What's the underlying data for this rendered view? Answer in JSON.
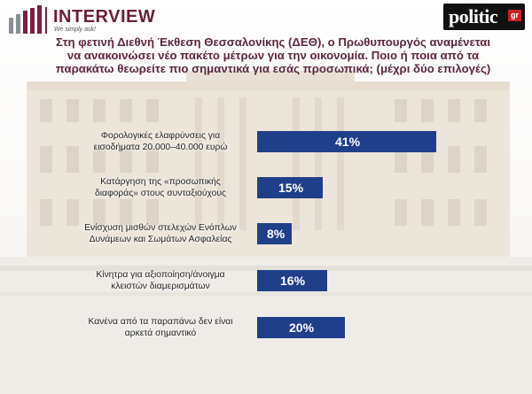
{
  "header": {
    "brand": "INTERVIEW",
    "tagline": "We simply ask!",
    "partner_logo_word": "politic",
    "partner_logo_suffix": "gr"
  },
  "question": {
    "lines": [
      "Στη φετινή Διεθνή Έκθεση Θεσσαλονίκης (ΔΕΘ), ο Πρωθυπουργός αναμένεται",
      "να ανακοινώσει νέο πακέτο μέτρων για την οικονομία. Ποιο ή ποια από τα",
      "παρακάτω θεωρείτε πιο σημαντικά για εσάς προσωπικά; (μέχρι δύο επιλογές)"
    ]
  },
  "chart_data": {
    "type": "bar",
    "orientation": "horizontal",
    "categories": [
      [
        "Φορολογικές ελαφρύνσεις για",
        "εισοδήματα 20.000–40.000 ευρώ"
      ],
      [
        "Κατάργηση της «προσωπικής",
        "διαφοράς» στους συνταξιούχους"
      ],
      [
        "Ενίσχυση μισθών στελεχών Ενόπλων",
        "Δυνάμεων και Σωμάτων Ασφαλείας"
      ],
      [
        "Κίνητρα για αξιοποίηση/άνοιγμα",
        "κλειστών διαμερισμάτων"
      ],
      [
        "Κανένα από τα παραπάνω δεν είναι",
        "αρκετά σημαντικό"
      ]
    ],
    "values": [
      41,
      15,
      8,
      16,
      20
    ],
    "value_labels": [
      "41%",
      "15%",
      "8%",
      "16%",
      "20%"
    ],
    "unit": "%",
    "bar_color": "#203f8a",
    "xlim": [
      0,
      41
    ],
    "grid": false,
    "legend": false
  }
}
